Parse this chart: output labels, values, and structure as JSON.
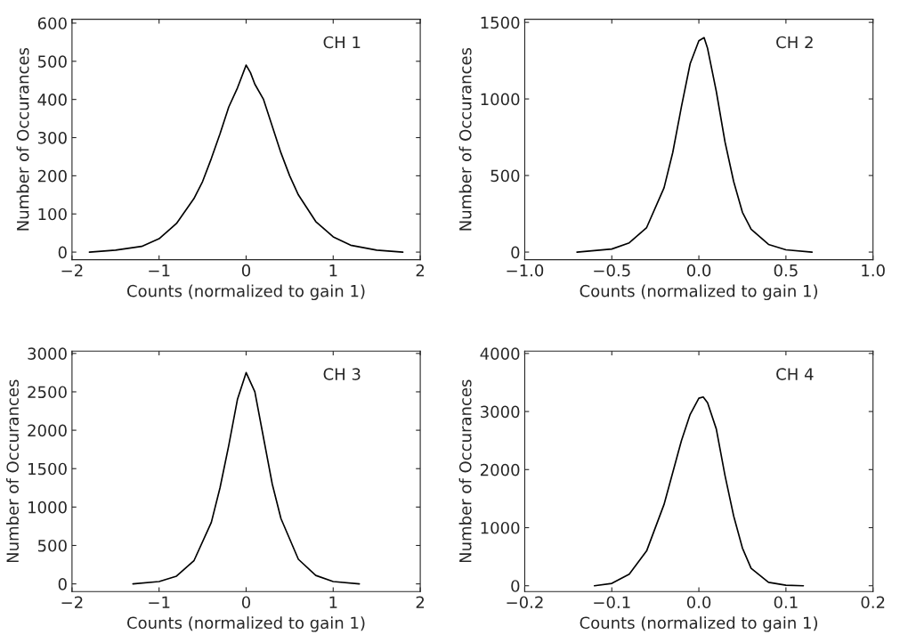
{
  "chart_data": [
    {
      "type": "line",
      "xlabel": "Counts (normalized to gain 1)",
      "ylabel": "Number of Occurances",
      "annotations": [
        "CH 1"
      ],
      "xlim": [
        -2,
        2
      ],
      "xticks": [
        {
          "value": -2,
          "label": "−2"
        },
        {
          "value": -1,
          "label": "−1"
        },
        0,
        1,
        2
      ],
      "ylim": [
        -20,
        610
      ],
      "yticks": [
        0,
        100,
        200,
        300,
        400,
        500,
        600
      ],
      "grid": false,
      "legend": false,
      "series": [
        {
          "color": "#000000",
          "x": [
            -1.8,
            -1.5,
            -1.2,
            -1.0,
            -0.8,
            -0.6,
            -0.5,
            -0.4,
            -0.3,
            -0.2,
            -0.1,
            -0.05,
            0,
            0.05,
            0.1,
            0.2,
            0.3,
            0.4,
            0.5,
            0.6,
            0.8,
            1.0,
            1.2,
            1.5,
            1.8
          ],
          "values": [
            0,
            5,
            15,
            35,
            75,
            140,
            185,
            245,
            310,
            380,
            430,
            460,
            490,
            470,
            440,
            400,
            330,
            260,
            200,
            150,
            80,
            40,
            18,
            5,
            0
          ]
        }
      ]
    },
    {
      "type": "line",
      "xlabel": "Counts (normalized to gain 1)",
      "ylabel": "Number of Occurances",
      "annotations": [
        "CH 2"
      ],
      "xlim": [
        -1,
        1
      ],
      "xticks": [
        {
          "value": -1,
          "label": "−1.0"
        },
        {
          "value": -0.5,
          "label": "−0.5"
        },
        {
          "value": 0,
          "label": "0.0"
        },
        {
          "value": 0.5,
          "label": "0.5"
        },
        {
          "value": 1,
          "label": "1.0"
        }
      ],
      "ylim": [
        -50,
        1520
      ],
      "yticks": [
        0,
        500,
        1000,
        1500
      ],
      "grid": false,
      "legend": false,
      "series": [
        {
          "color": "#000000",
          "x": [
            -0.7,
            -0.5,
            -0.4,
            -0.3,
            -0.2,
            -0.15,
            -0.1,
            -0.05,
            0,
            0.03,
            0.05,
            0.1,
            0.15,
            0.2,
            0.25,
            0.3,
            0.4,
            0.5,
            0.65
          ],
          "values": [
            0,
            20,
            60,
            160,
            420,
            650,
            950,
            1230,
            1380,
            1400,
            1330,
            1050,
            720,
            460,
            260,
            150,
            50,
            15,
            0
          ]
        }
      ]
    },
    {
      "type": "line",
      "xlabel": "Counts (normalized to gain 1)",
      "ylabel": "Number of Occurances",
      "annotations": [
        "CH 3"
      ],
      "xlim": [
        -2,
        2
      ],
      "xticks": [
        {
          "value": -2,
          "label": "−2"
        },
        {
          "value": -1,
          "label": "−1"
        },
        0,
        1,
        2
      ],
      "ylim": [
        -100,
        3030
      ],
      "yticks": [
        0,
        500,
        1000,
        1500,
        2000,
        2500,
        3000
      ],
      "grid": false,
      "legend": false,
      "series": [
        {
          "color": "#000000",
          "x": [
            -1.3,
            -1.0,
            -0.8,
            -0.6,
            -0.4,
            -0.3,
            -0.2,
            -0.1,
            0,
            0.1,
            0.2,
            0.3,
            0.4,
            0.6,
            0.8,
            1.0,
            1.3
          ],
          "values": [
            0,
            30,
            100,
            300,
            800,
            1250,
            1800,
            2400,
            2750,
            2500,
            1900,
            1300,
            850,
            320,
            110,
            30,
            0
          ]
        }
      ]
    },
    {
      "type": "line",
      "xlabel": "Counts (normalized to gain 1)",
      "ylabel": "Number of Occurances",
      "annotations": [
        "CH 4"
      ],
      "xlim": [
        -0.2,
        0.2
      ],
      "xticks": [
        {
          "value": -0.2,
          "label": "−0.2"
        },
        {
          "value": -0.1,
          "label": "−0.1"
        },
        {
          "value": 0,
          "label": "0.0"
        },
        {
          "value": 0.1,
          "label": "0.1"
        },
        {
          "value": 0.2,
          "label": "0.2"
        }
      ],
      "ylim": [
        -100,
        4040
      ],
      "yticks": [
        0,
        1000,
        2000,
        3000,
        4000
      ],
      "grid": false,
      "legend": false,
      "series": [
        {
          "color": "#000000",
          "x": [
            -0.12,
            -0.1,
            -0.08,
            -0.06,
            -0.04,
            -0.02,
            -0.01,
            0,
            0.005,
            0.01,
            0.02,
            0.03,
            0.04,
            0.05,
            0.06,
            0.08,
            0.1,
            0.12
          ],
          "values": [
            0,
            40,
            200,
            600,
            1400,
            2500,
            2950,
            3230,
            3250,
            3150,
            2700,
            1900,
            1200,
            650,
            300,
            60,
            10,
            0
          ]
        }
      ]
    }
  ]
}
